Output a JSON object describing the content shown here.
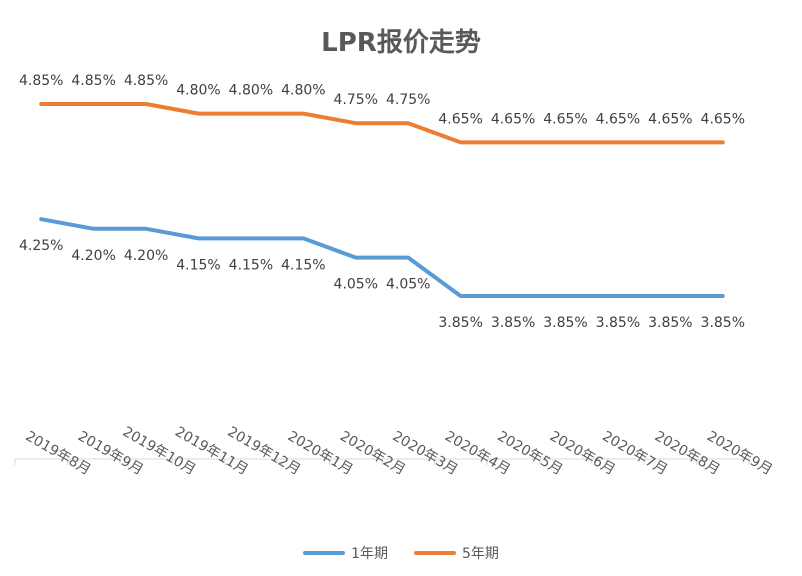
{
  "chart_data": {
    "type": "line",
    "title": "LPR报价走势",
    "xlabel": "",
    "ylabel": "",
    "categories": [
      "2019年8月",
      "2019年9月",
      "2019年10月",
      "2019年11月",
      "2019年12月",
      "2020年1月",
      "2020年2月",
      "2020年3月",
      "2020年4月",
      "2020年5月",
      "2020年6月",
      "2020年7月",
      "2020年8月",
      "2020年9月"
    ],
    "series": [
      {
        "name": "1年期",
        "color": "#5b9bd5",
        "values": [
          4.25,
          4.2,
          4.2,
          4.15,
          4.15,
          4.15,
          4.05,
          4.05,
          3.85,
          3.85,
          3.85,
          3.85,
          3.85,
          3.85
        ],
        "labels": [
          "4.25%",
          "4.20%",
          "4.20%",
          "4.15%",
          "4.15%",
          "4.15%",
          "4.05%",
          "4.05%",
          "3.85%",
          "3.85%",
          "3.85%",
          "3.85%",
          "3.85%",
          "3.85%"
        ]
      },
      {
        "name": "5年期",
        "color": "#ed7d31",
        "values": [
          4.85,
          4.85,
          4.85,
          4.8,
          4.8,
          4.8,
          4.75,
          4.75,
          4.65,
          4.65,
          4.65,
          4.65,
          4.65,
          4.65
        ],
        "labels": [
          "4.85%",
          "4.85%",
          "4.85%",
          "4.80%",
          "4.80%",
          "4.80%",
          "4.75%",
          "4.75%",
          "4.65%",
          "4.65%",
          "4.65%",
          "4.65%",
          "4.65%",
          "4.65%"
        ]
      }
    ],
    "ylim": [
      3.0,
      5.0
    ],
    "grid": false,
    "legend_position": "bottom"
  }
}
